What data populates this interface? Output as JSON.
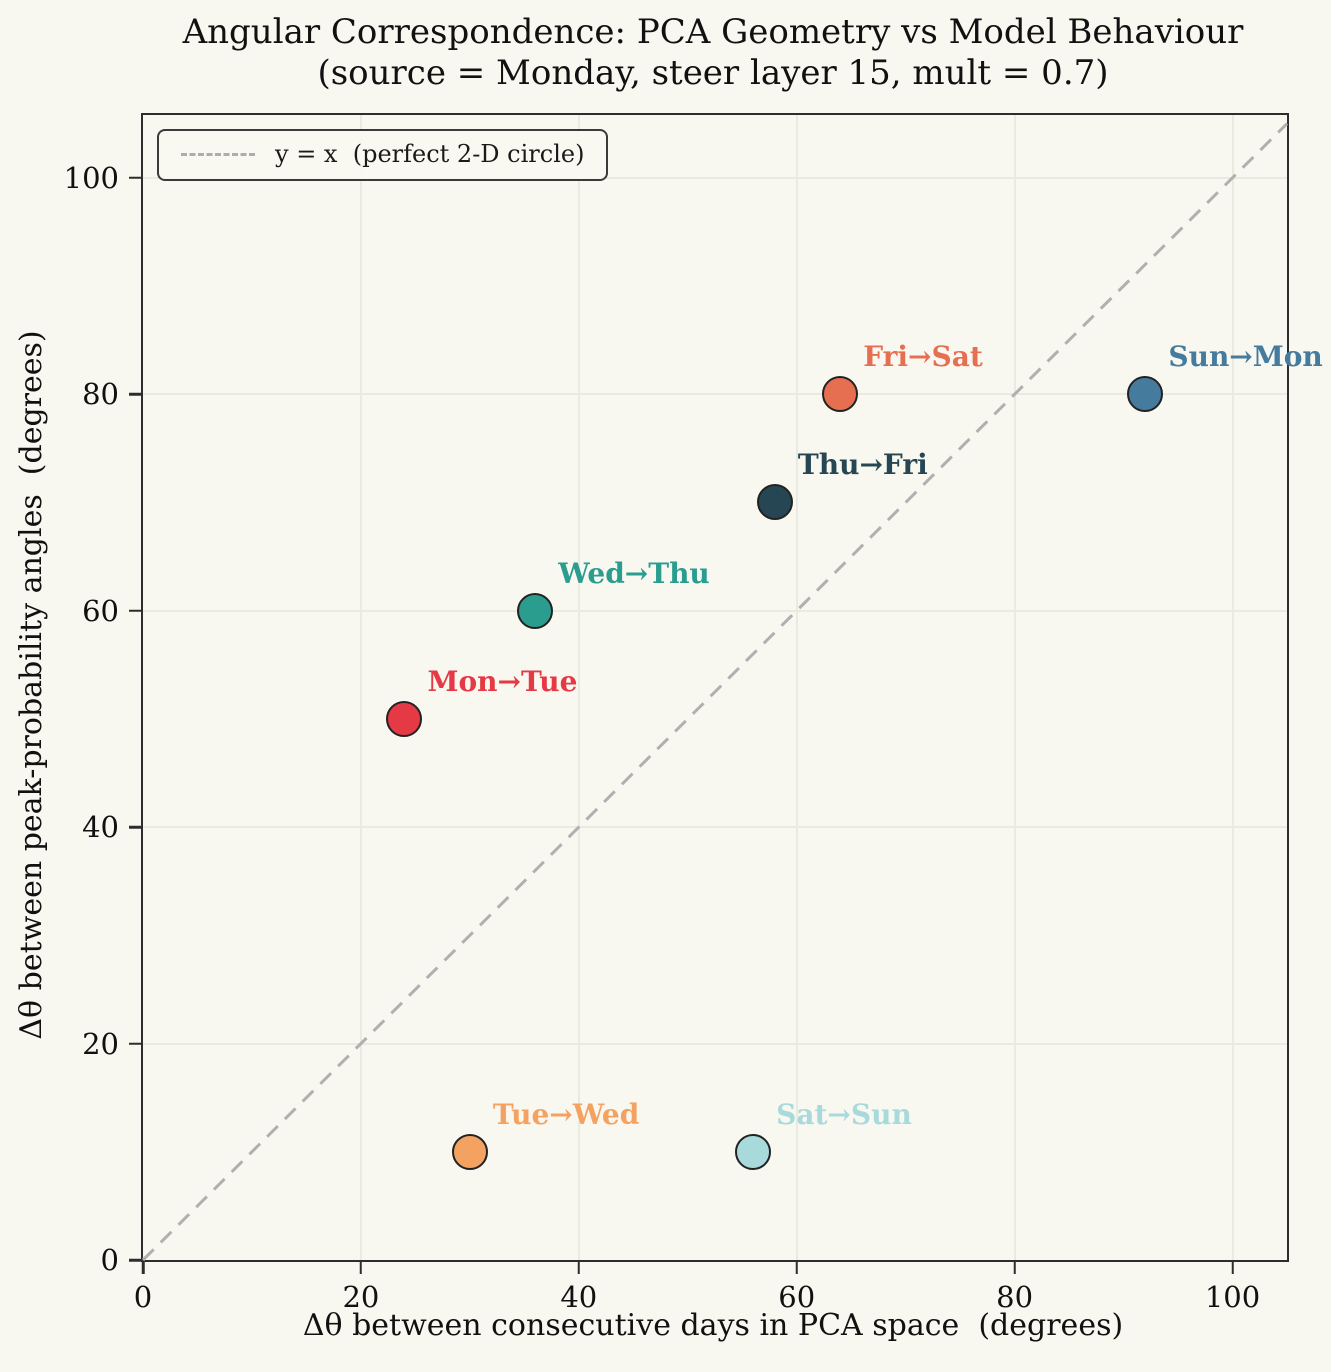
{
  "title": {
    "line1": "Angular Correspondence: PCA Geometry vs Model Behaviour",
    "line2": "(source = Monday, steer layer 15, mult = 0.7)"
  },
  "legend": {
    "label": "y = x  (perfect 2-D circle)"
  },
  "axes": {
    "x_label": "Δθ between consecutive days in PCA space  (degrees)",
    "y_label": "Δθ between peak-probability angles  (degrees)",
    "x_ticks": [
      0,
      20,
      40,
      60,
      80,
      100
    ],
    "y_ticks": [
      0,
      20,
      40,
      60,
      80,
      100
    ]
  },
  "colors": {
    "background": "#f8f8f1",
    "spine": "#2d2d2d",
    "gridline": "#eaeae1",
    "diagonal": "#b0b0b0",
    "marker_edge": "#222222"
  },
  "chart_data": {
    "type": "scatter",
    "title": "Angular Correspondence: PCA Geometry vs Model Behaviour",
    "subtitle": "(source = Monday, steer layer 15, mult = 0.7)",
    "xlabel": "Δθ between consecutive days in PCA space  (degrees)",
    "ylabel": "Δθ between peak-probability angles  (degrees)",
    "xlim": [
      0,
      105
    ],
    "ylim": [
      0,
      105.8
    ],
    "grid": true,
    "legend_position": "upper left",
    "reference_line": {
      "label": "y = x  (perfect 2-D circle)",
      "style": "dashed",
      "color": "#b0b0b0",
      "from": [
        0,
        0
      ],
      "to": [
        105,
        105
      ]
    },
    "points": [
      {
        "label": "Mon→Tue",
        "x": 24,
        "y": 50,
        "color": "#e63946"
      },
      {
        "label": "Tue→Wed",
        "x": 30,
        "y": 10,
        "color": "#f4a261"
      },
      {
        "label": "Wed→Thu",
        "x": 36,
        "y": 60,
        "color": "#2a9d8f"
      },
      {
        "label": "Thu→Fri",
        "x": 58,
        "y": 70,
        "color": "#264653"
      },
      {
        "label": "Fri→Sat",
        "x": 64,
        "y": 80,
        "color": "#e76f51"
      },
      {
        "label": "Sat→Sun",
        "x": 56,
        "y": 10,
        "color": "#a8dadc"
      },
      {
        "label": "Sun→Mon",
        "x": 92,
        "y": 80,
        "color": "#457b9d"
      }
    ]
  }
}
